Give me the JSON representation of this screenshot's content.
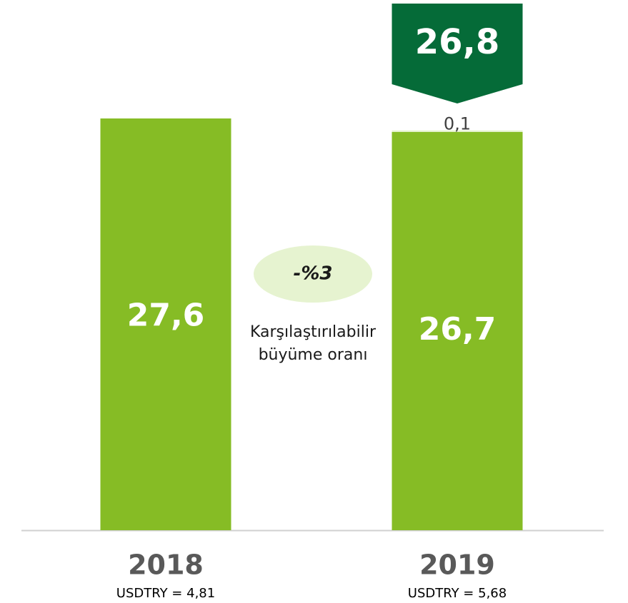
{
  "chart_data": {
    "type": "stacked_bar",
    "categories": [
      "2018",
      "2019"
    ],
    "category_notes": [
      "USDTRY = 4,81",
      "USDTRY = 5,68"
    ],
    "series": [
      {
        "color": "#86bc25",
        "values": [
          27.6,
          26.7
        ],
        "value_labels": [
          "27,6",
          "26,7"
        ]
      },
      {
        "color": "#e6f3d0",
        "values": [
          null,
          0.1
        ],
        "value_labels": [
          null,
          "0,1"
        ]
      }
    ],
    "totals": [
      null,
      26.8
    ],
    "total_labels": [
      null,
      "26,8"
    ],
    "total_color": "#056b38",
    "annotation": {
      "value": -3,
      "label": "-%3",
      "text": [
        "Karşılaştırılabilir",
        "büyüme oranı"
      ],
      "color": "#e6f3d0"
    }
  }
}
